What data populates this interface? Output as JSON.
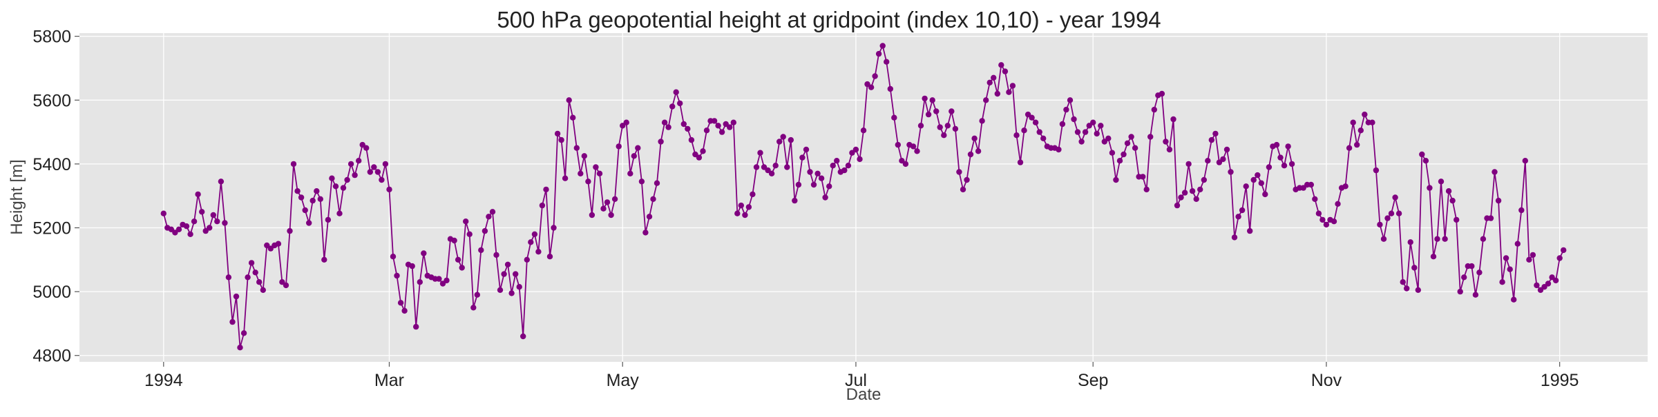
{
  "chart_data": {
    "type": "line",
    "title": "500 hPa geopotential height at gridpoint (index 10,10) - year 1994",
    "xlabel": "Date",
    "ylabel": "Height [m]",
    "x_start": "1994-01-01",
    "x_range": [
      "1993-12-10",
      "1995-01-24"
    ],
    "ylim": [
      4780,
      5810
    ],
    "grid": true,
    "x_ticks": [
      {
        "date": "1994-01-01",
        "label": "1994"
      },
      {
        "date": "1994-03-01",
        "label": "Mar"
      },
      {
        "date": "1994-05-01",
        "label": "May"
      },
      {
        "date": "1994-07-01",
        "label": "Jul"
      },
      {
        "date": "1994-09-01",
        "label": "Sep"
      },
      {
        "date": "1994-11-01",
        "label": "Nov"
      },
      {
        "date": "1995-01-01",
        "label": "1995"
      }
    ],
    "y_ticks": [
      4800,
      5000,
      5200,
      5400,
      5600,
      5800
    ],
    "series": [
      {
        "name": "",
        "color": "#800080",
        "values": [
          5245,
          5200,
          5195,
          5185,
          5195,
          5210,
          5205,
          5180,
          5220,
          5305,
          5250,
          5190,
          5200,
          5240,
          5220,
          5345,
          5215,
          5045,
          4905,
          4985,
          4825,
          4870,
          5045,
          5090,
          5060,
          5030,
          5005,
          5145,
          5135,
          5145,
          5150,
          5030,
          5020,
          5190,
          5400,
          5315,
          5295,
          5255,
          5215,
          5285,
          5315,
          5290,
          5100,
          5225,
          5355,
          5330,
          5245,
          5325,
          5350,
          5400,
          5365,
          5410,
          5460,
          5450,
          5375,
          5390,
          5375,
          5350,
          5400,
          5320,
          5110,
          5050,
          4965,
          4940,
          5085,
          5080,
          4890,
          5030,
          5120,
          5050,
          5045,
          5040,
          5040,
          5025,
          5035,
          5165,
          5160,
          5100,
          5075,
          5220,
          5180,
          4950,
          4990,
          5130,
          5190,
          5235,
          5250,
          5115,
          5005,
          5055,
          5085,
          4995,
          5055,
          5015,
          4860,
          5100,
          5155,
          5180,
          5125,
          5270,
          5320,
          5110,
          5200,
          5495,
          5475,
          5355,
          5600,
          5545,
          5450,
          5370,
          5425,
          5345,
          5240,
          5390,
          5370,
          5260,
          5280,
          5240,
          5290,
          5455,
          5520,
          5530,
          5370,
          5425,
          5450,
          5345,
          5185,
          5235,
          5290,
          5340,
          5470,
          5530,
          5515,
          5580,
          5625,
          5590,
          5525,
          5510,
          5475,
          5430,
          5420,
          5440,
          5505,
          5535,
          5535,
          5520,
          5500,
          5525,
          5515,
          5530,
          5245,
          5270,
          5240,
          5265,
          5305,
          5390,
          5435,
          5390,
          5380,
          5370,
          5395,
          5470,
          5485,
          5390,
          5475,
          5285,
          5335,
          5420,
          5445,
          5375,
          5335,
          5370,
          5355,
          5295,
          5330,
          5395,
          5410,
          5375,
          5380,
          5395,
          5435,
          5445,
          5415,
          5505,
          5650,
          5640,
          5675,
          5745,
          5770,
          5720,
          5635,
          5545,
          5460,
          5410,
          5400,
          5460,
          5455,
          5440,
          5520,
          5605,
          5555,
          5600,
          5565,
          5515,
          5490,
          5520,
          5565,
          5510,
          5375,
          5320,
          5350,
          5430,
          5480,
          5440,
          5535,
          5600,
          5655,
          5670,
          5620,
          5710,
          5690,
          5625,
          5645,
          5490,
          5405,
          5505,
          5555,
          5545,
          5530,
          5500,
          5480,
          5455,
          5450,
          5450,
          5445,
          5525,
          5570,
          5600,
          5540,
          5500,
          5470,
          5500,
          5520,
          5530,
          5495,
          5520,
          5470,
          5480,
          5435,
          5350,
          5410,
          5430,
          5465,
          5485,
          5450,
          5360,
          5360,
          5320,
          5485,
          5570,
          5615,
          5620,
          5470,
          5445,
          5540,
          5270,
          5295,
          5310,
          5400,
          5315,
          5290,
          5320,
          5350,
          5410,
          5475,
          5495,
          5405,
          5415,
          5445,
          5375,
          5170,
          5235,
          5255,
          5330,
          5190,
          5350,
          5365,
          5340,
          5305,
          5390,
          5455,
          5460,
          5420,
          5395,
          5455,
          5400,
          5320,
          5325,
          5325,
          5335,
          5335,
          5290,
          5245,
          5225,
          5210,
          5225,
          5220,
          5275,
          5325,
          5330,
          5450,
          5530,
          5460,
          5505,
          5555,
          5530,
          5530,
          5380,
          5210,
          5165,
          5230,
          5245,
          5295,
          5245,
          5030,
          5010,
          5155,
          5075,
          5005,
          5430,
          5410,
          5325,
          5110,
          5165,
          5345,
          5165,
          5315,
          5285,
          5225,
          5000,
          5045,
          5080,
          5080,
          4990,
          5060,
          5165,
          5230,
          5230,
          5375,
          5285,
          5030,
          5105,
          5070,
          4975,
          5150,
          5255,
          5410,
          5100,
          5115,
          5020,
          5005,
          5015,
          5025,
          5045,
          5035,
          5105,
          5130
        ]
      }
    ]
  }
}
